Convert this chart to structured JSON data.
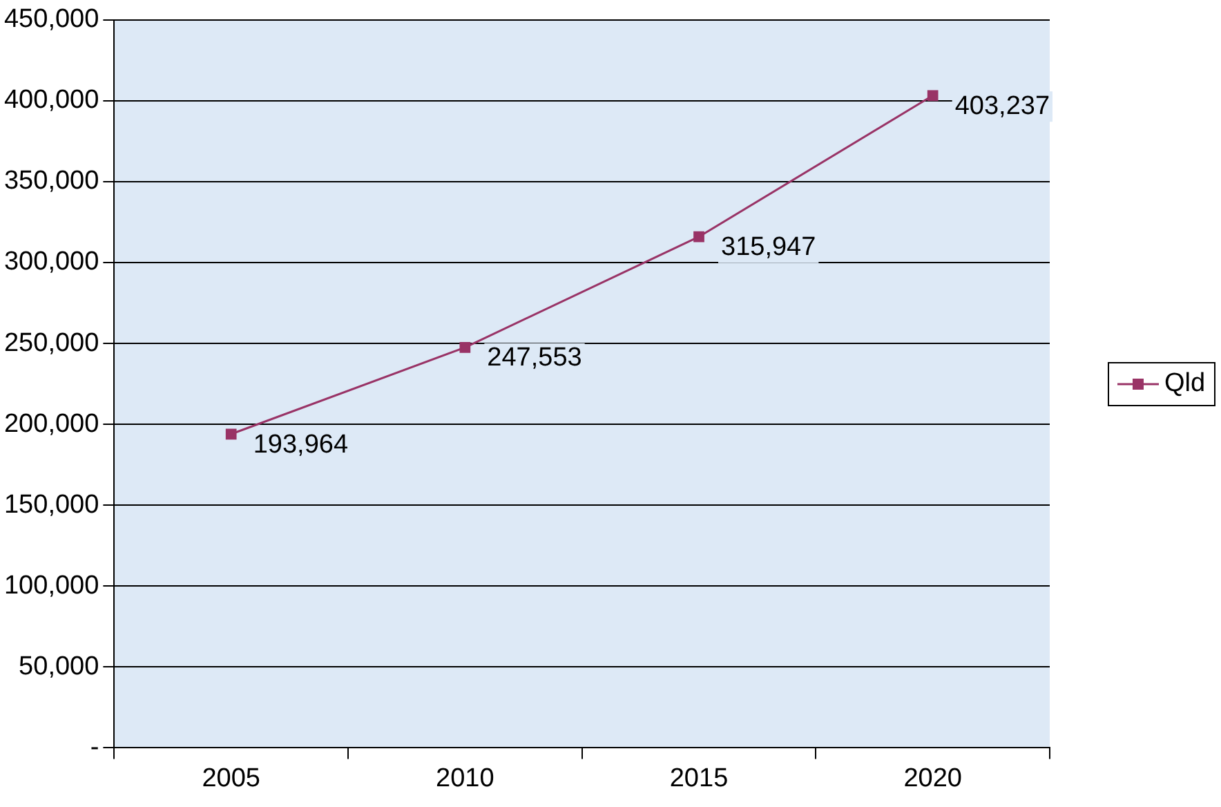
{
  "chart_data": {
    "type": "line",
    "categories": [
      "2005",
      "2010",
      "2015",
      "2020"
    ],
    "series": [
      {
        "name": "Qld",
        "color": "#993366",
        "values": [
          193964,
          247553,
          315947,
          403237
        ],
        "value_labels": [
          "193,964",
          "247,553",
          "315,947",
          "403,237"
        ]
      }
    ],
    "ylim": [
      0,
      450000
    ],
    "yticks": [
      {
        "value": 0,
        "label": "-"
      },
      {
        "value": 50000,
        "label": "50,000"
      },
      {
        "value": 100000,
        "label": "100,000"
      },
      {
        "value": 150000,
        "label": "150,000"
      },
      {
        "value": 200000,
        "label": "200,000"
      },
      {
        "value": 250000,
        "label": "250,000"
      },
      {
        "value": 300000,
        "label": "300,000"
      },
      {
        "value": 350000,
        "label": "350,000"
      },
      {
        "value": 400000,
        "label": "400,000"
      },
      {
        "value": 450000,
        "label": "450,000"
      }
    ],
    "grid": "y",
    "legend": "right",
    "marker": "square"
  }
}
